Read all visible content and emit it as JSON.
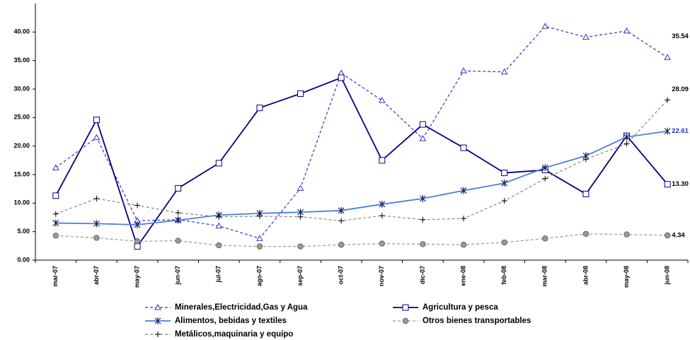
{
  "chart_data": {
    "type": "line",
    "categories": [
      "mar-07",
      "abr-07",
      "may-07",
      "jun-07",
      "jul-07",
      "ago-07",
      "sep-07",
      "oct-07",
      "nov-07",
      "dic-07",
      "ene-08",
      "feb-08",
      "mar-08",
      "abr-08",
      "may-08",
      "jun-08"
    ],
    "ylim": [
      0,
      45
    ],
    "yticks": [
      {
        "value": 0,
        "label": "0.00"
      },
      {
        "value": 5,
        "label": "5.00"
      },
      {
        "value": 10,
        "label": "10.00"
      },
      {
        "value": 15,
        "label": "15.00"
      },
      {
        "value": 20,
        "label": "20.00"
      },
      {
        "value": 25,
        "label": "25.00"
      },
      {
        "value": 30,
        "label": "30.00"
      },
      {
        "value": 35,
        "label": "35.00"
      },
      {
        "value": 40,
        "label": "40.00"
      }
    ],
    "grid": false,
    "legend": "bottom",
    "series": [
      {
        "name": "Minerales,Electricidad,Gas y Agua",
        "color": "#3333cc",
        "dash": true,
        "marker": "triangle",
        "label_color": "#000000",
        "values": [
          16.2,
          21.5,
          6.9,
          7.1,
          6.0,
          3.8,
          12.6,
          32.8,
          28.0,
          21.3,
          33.2,
          33.0,
          41.0,
          39.1,
          40.2,
          35.54
        ],
        "value_labels": [
          null,
          null,
          null,
          null,
          null,
          null,
          null,
          null,
          null,
          null,
          null,
          null,
          null,
          null,
          null,
          "35.54"
        ]
      },
      {
        "name": "Agricultura y pesca",
        "color": "#000080",
        "dash": false,
        "marker": "square",
        "label_color": "#000000",
        "values": [
          11.3,
          24.6,
          2.4,
          12.6,
          17.0,
          26.7,
          29.2,
          32.0,
          17.5,
          23.8,
          19.7,
          15.3,
          15.8,
          11.6,
          21.8,
          13.3
        ],
        "value_labels": [
          null,
          null,
          null,
          null,
          null,
          null,
          null,
          null,
          null,
          null,
          null,
          null,
          null,
          null,
          null,
          "13.30"
        ]
      },
      {
        "name": "Alimentos, bebidas y textiles",
        "color": "#4a7fd8",
        "dash": false,
        "marker": "star",
        "label_color": "#2233cc",
        "values": [
          6.5,
          6.4,
          6.2,
          7.0,
          7.9,
          8.2,
          8.4,
          8.7,
          9.8,
          10.8,
          12.2,
          13.5,
          16.2,
          18.3,
          21.6,
          22.61
        ],
        "value_labels": [
          null,
          null,
          null,
          null,
          null,
          null,
          null,
          null,
          null,
          null,
          null,
          null,
          null,
          null,
          null,
          "22.61"
        ]
      },
      {
        "name": "Otros bienes transportables",
        "color": "#999999",
        "dash": true,
        "marker": "circle",
        "label_color": "#000000",
        "values": [
          4.3,
          3.9,
          3.3,
          3.4,
          2.6,
          2.4,
          2.4,
          2.7,
          2.9,
          2.8,
          2.7,
          3.1,
          3.8,
          4.6,
          4.5,
          4.34
        ],
        "value_labels": [
          null,
          null,
          null,
          null,
          null,
          null,
          null,
          null,
          null,
          null,
          null,
          null,
          null,
          null,
          null,
          "4.34"
        ]
      },
      {
        "name": "Metálicos,maquinaria y equipo",
        "color": "#888888",
        "dash": true,
        "marker": "plus",
        "label_color": "#000000",
        "values": [
          8.1,
          10.8,
          9.6,
          8.3,
          7.6,
          7.7,
          7.6,
          6.9,
          7.8,
          7.1,
          7.3,
          10.4,
          14.3,
          17.7,
          20.4,
          28.09
        ],
        "value_labels": [
          null,
          null,
          null,
          null,
          null,
          null,
          null,
          null,
          null,
          null,
          null,
          null,
          null,
          null,
          null,
          "28.09"
        ]
      }
    ]
  }
}
